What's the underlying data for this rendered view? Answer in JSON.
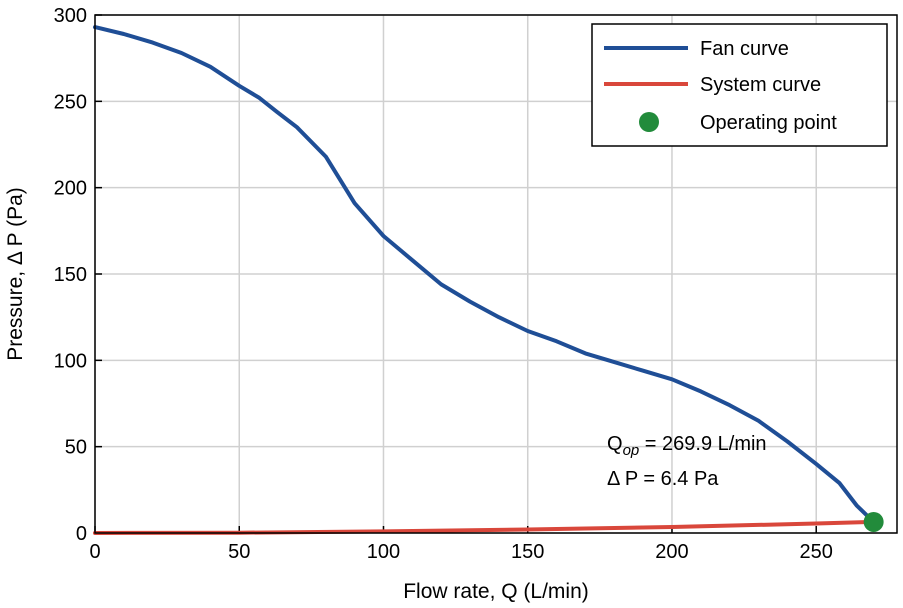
{
  "chart_data": {
    "type": "line",
    "xlabel": "Flow rate, Q (L/min)",
    "ylabel": "Pressure, Δ P (Pa)",
    "xlim": [
      0,
      278
    ],
    "ylim": [
      0,
      300
    ],
    "xticks": [
      0,
      50,
      100,
      150,
      200,
      250
    ],
    "yticks": [
      0,
      50,
      100,
      150,
      200,
      250,
      300
    ],
    "grid": true,
    "legend_placement": "top-right",
    "series": [
      {
        "name": "Fan curve",
        "color": "#1f4e96",
        "x": [
          0,
          10,
          20,
          30,
          40,
          50,
          57,
          63,
          70,
          80,
          90,
          100,
          110,
          120,
          130,
          140,
          150,
          160,
          170,
          180,
          190,
          200,
          210,
          220,
          230,
          240,
          250,
          258,
          264,
          269.9
        ],
        "y": [
          293,
          289,
          284,
          278,
          270,
          259,
          252,
          244,
          235,
          218,
          191,
          172,
          158,
          144,
          134,
          125,
          117,
          111,
          104,
          99,
          94,
          89,
          82,
          74,
          65,
          53,
          40,
          29,
          16,
          6.4
        ]
      },
      {
        "name": "System curve",
        "color": "#d9473b",
        "x": [
          0,
          50,
          100,
          150,
          200,
          250,
          269.9
        ],
        "y": [
          0,
          0.2,
          0.9,
          2.0,
          3.5,
          5.5,
          6.4
        ]
      }
    ],
    "operating_point": {
      "name": "Operating point",
      "color": "#228b3b",
      "x": 269.9,
      "y": 6.4
    },
    "annotation": {
      "q_prefix": "Q",
      "q_sub": "op",
      "q_suffix": " = 269.9 L/min",
      "dp_line": "Δ P = 6.4 Pa"
    }
  }
}
